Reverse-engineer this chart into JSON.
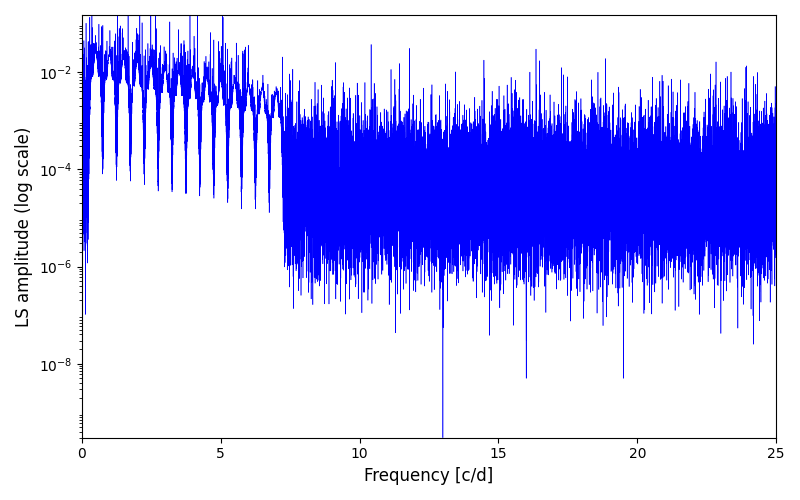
{
  "xlabel": "Frequency [c/d]",
  "ylabel": "LS amplitude (log scale)",
  "xlim": [
    0,
    25
  ],
  "ylim": [
    3e-10,
    0.15
  ],
  "line_color": "blue",
  "line_width": 0.4,
  "background_color": "#ffffff",
  "freq_max": 25.0,
  "n_points": 25000,
  "seed": 1234,
  "yticks": [
    1e-08,
    1e-06,
    0.0001,
    0.01
  ],
  "xticks": [
    0,
    5,
    10,
    15,
    20,
    25
  ]
}
